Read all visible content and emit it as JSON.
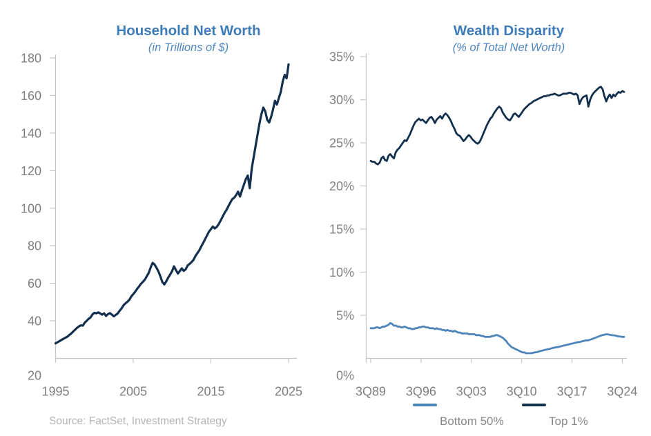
{
  "source_note": "Source: FactSet, Investment Strategy",
  "colors": {
    "title_blue": "#3d7bb9",
    "subtitle_blue": "#4f86c0",
    "navy_line": "#132f4e",
    "light_blue_line": "#4c84b9",
    "axis_gray": "#c4c5c7",
    "tick_label_gray": "#7d7f82",
    "legend_label_gray": "#85878a",
    "source_gray": "#b2b4b7"
  },
  "chart_data": [
    {
      "type": "line",
      "title": "Household Net Worth",
      "subtitle": "(in Trillions of $)",
      "x_start": 1995.0,
      "x_end": 2025.0,
      "x_frequency": "quarterly",
      "ylim": [
        20,
        180
      ],
      "grid": false,
      "legend_position": "none",
      "y_ticks": [
        {
          "label": "180",
          "value": 180
        },
        {
          "label": "160",
          "value": 160
        },
        {
          "label": "140",
          "value": 140
        },
        {
          "label": "120",
          "value": 120
        },
        {
          "label": "100",
          "value": 100
        },
        {
          "label": "80",
          "value": 80
        },
        {
          "label": "60",
          "value": 60
        },
        {
          "label": "40",
          "value": 40
        },
        {
          "label": "20",
          "value": 20
        }
      ],
      "x_ticks": [
        {
          "label": "1995",
          "value": 1995
        },
        {
          "label": "2005",
          "value": 2005
        },
        {
          "label": "2015",
          "value": 2015
        },
        {
          "label": "2025",
          "value": 2025
        }
      ],
      "series": [
        {
          "name": "Household Net Worth",
          "color": "#132f4e",
          "values": [
            28,
            28.6,
            29.2,
            29.8,
            30.4,
            31,
            31.5,
            32.4,
            33.2,
            34.2,
            35.2,
            36.2,
            37,
            37.6,
            37.4,
            39,
            40,
            41,
            41.8,
            43.4,
            44.3,
            44,
            44.5,
            43.9,
            43.3,
            44,
            42.6,
            43.6,
            44.1,
            43.3,
            42.4,
            43.2,
            43.9,
            45.4,
            46.6,
            48.3,
            49.3,
            50.2,
            51.2,
            53,
            54.2,
            55.5,
            57,
            58.3,
            59.8,
            60.8,
            62,
            63.8,
            65.6,
            68.5,
            70.9,
            70,
            68.2,
            66.2,
            63.6,
            60.6,
            59.4,
            61,
            63,
            64.6,
            66.5,
            69,
            67,
            65.2,
            66.5,
            68,
            66.6,
            67.4,
            69.5,
            70.3,
            71.3,
            72.4,
            74.4,
            76,
            77.5,
            79.5,
            81.5,
            83.5,
            85.5,
            87.5,
            88.8,
            90.2,
            89.2,
            90,
            91.5,
            93.4,
            95.4,
            97.4,
            99,
            101,
            103,
            104.8,
            105.6,
            107,
            108.8,
            106.2,
            109.5,
            112.5,
            115.5,
            117.4,
            110.6,
            121,
            127,
            133,
            139,
            145,
            150,
            153.6,
            151.5,
            147,
            145.6,
            148.6,
            152.6,
            157.2,
            155.2,
            158.6,
            162,
            167.6,
            171,
            169.2,
            176.6
          ]
        }
      ]
    },
    {
      "type": "line",
      "title": "Wealth Disparity",
      "subtitle": "(% of Total Net Worth)",
      "x_start": 1989.75,
      "x_end": 2025.0,
      "x_frequency": "quarterly",
      "ylim": [
        0,
        35
      ],
      "grid": false,
      "legend_position": "bottom",
      "y_ticks": [
        {
          "label": "35%",
          "value": 35
        },
        {
          "label": "30%",
          "value": 30
        },
        {
          "label": "25%",
          "value": 25
        },
        {
          "label": "20%",
          "value": 20
        },
        {
          "label": "15%",
          "value": 15
        },
        {
          "label": "10%",
          "value": 10
        },
        {
          "label": "5%",
          "value": 5
        },
        {
          "label": "0%",
          "value": 0
        }
      ],
      "x_ticks": [
        {
          "label": "3Q89",
          "value": 1989.75
        },
        {
          "label": "3Q96",
          "value": 1996.75
        },
        {
          "label": "3Q03",
          "value": 2003.75
        },
        {
          "label": "3Q10",
          "value": 2010.75
        },
        {
          "label": "3Q17",
          "value": 2017.75
        },
        {
          "label": "3Q24",
          "value": 2024.75
        }
      ],
      "series": [
        {
          "name": "Bottom 50%",
          "color": "#4c84b9",
          "values": [
            3.5,
            3.5,
            3.5,
            3.6,
            3.6,
            3.5,
            3.6,
            3.7,
            3.7,
            3.8,
            3.9,
            4.1,
            4,
            3.8,
            3.8,
            3.7,
            3.7,
            3.6,
            3.6,
            3.7,
            3.6,
            3.5,
            3.5,
            3.4,
            3.4,
            3.5,
            3.5,
            3.6,
            3.6,
            3.7,
            3.7,
            3.6,
            3.6,
            3.5,
            3.5,
            3.5,
            3.4,
            3.5,
            3.4,
            3.4,
            3.3,
            3.3,
            3.2,
            3.3,
            3.2,
            3.2,
            3.1,
            3.2,
            3.1,
            3,
            3,
            2.9,
            2.9,
            2.9,
            2.9,
            2.8,
            2.8,
            2.8,
            2.8,
            2.7,
            2.7,
            2.7,
            2.6,
            2.6,
            2.5,
            2.5,
            2.5,
            2.5,
            2.6,
            2.6,
            2.7,
            2.7,
            2.6,
            2.5,
            2.4,
            2.2,
            2,
            1.7,
            1.5,
            1.3,
            1.2,
            1.1,
            1,
            0.9,
            0.8,
            0.7,
            0.7,
            0.6,
            0.6,
            0.6,
            0.6,
            0.65,
            0.7,
            0.72,
            0.78,
            0.85,
            0.9,
            0.95,
            1,
            1.05,
            1.1,
            1.15,
            1.2,
            1.25,
            1.3,
            1.32,
            1.38,
            1.42,
            1.48,
            1.52,
            1.58,
            1.62,
            1.68,
            1.72,
            1.78,
            1.82,
            1.88,
            1.9,
            1.95,
            2,
            2.05,
            2.1,
            2.1,
            2.18,
            2.25,
            2.32,
            2.4,
            2.48,
            2.56,
            2.65,
            2.7,
            2.75,
            2.8,
            2.78,
            2.74,
            2.7,
            2.68,
            2.66,
            2.6,
            2.56,
            2.52,
            2.5,
            2.5
          ]
        },
        {
          "name": "Top 1%",
          "color": "#132f4e",
          "values": [
            22.9,
            22.8,
            22.8,
            22.6,
            22.5,
            22.7,
            23.2,
            23.4,
            23,
            22.9,
            23.5,
            23.7,
            23.4,
            23.2,
            23.9,
            24.2,
            24.4,
            24.7,
            25,
            25.3,
            25.2,
            25.6,
            26,
            26.5,
            27,
            27.4,
            27.6,
            27.8,
            27.6,
            27.7,
            27.5,
            27.3,
            27.6,
            27.9,
            28,
            27.7,
            27.3,
            27.7,
            27.9,
            28.1,
            27.8,
            28.2,
            28.4,
            28.2,
            27.9,
            27.5,
            27,
            26.6,
            26.1,
            25.9,
            25.8,
            25.5,
            25.2,
            25.4,
            25.7,
            25.9,
            25.7,
            25.4,
            25.2,
            25,
            24.9,
            25.1,
            25.5,
            26,
            26.5,
            27,
            27.4,
            27.8,
            28,
            28.4,
            28.7,
            29,
            29.2,
            29,
            28.5,
            28.2,
            27.9,
            27.7,
            27.6,
            27.9,
            28.3,
            28.4,
            28.2,
            28,
            28.3,
            28.6,
            28.9,
            29.1,
            29.3,
            29.5,
            29.6,
            29.8,
            29.9,
            30,
            30.1,
            30.2,
            30.3,
            30.4,
            30.4,
            30.5,
            30.5,
            30.6,
            30.6,
            30.7,
            30.6,
            30.5,
            30.5,
            30.6,
            30.7,
            30.7,
            30.7,
            30.8,
            30.8,
            30.7,
            30.6,
            30.7,
            30.5,
            29.5,
            30,
            30.3,
            30.4,
            30.5,
            29.2,
            30,
            30.5,
            30.8,
            31,
            31.2,
            31.4,
            31.5,
            31.2,
            30.4,
            29.8,
            30.3,
            30.6,
            30.2,
            30.6,
            30.4,
            30.7,
            30.9,
            30.8,
            31,
            30.9
          ]
        }
      ]
    }
  ]
}
